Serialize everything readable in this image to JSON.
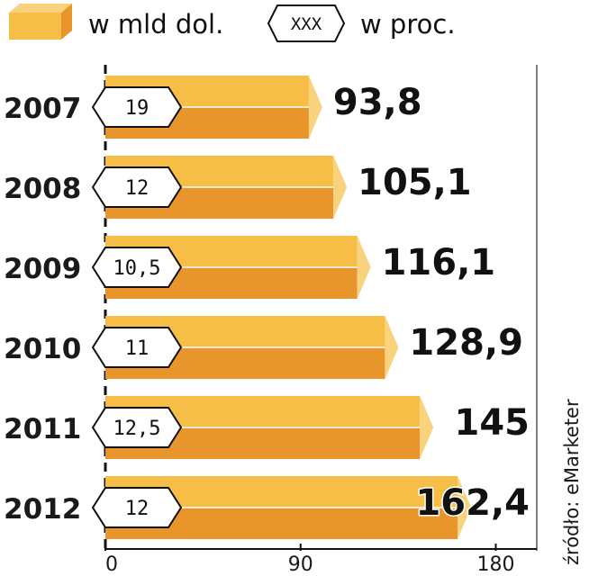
{
  "legend": {
    "bar_label": "w mld dol.",
    "pct_label": "w proc.",
    "pct_symbol": "XXX"
  },
  "source": "źródło: eMarketer",
  "chart_data": {
    "type": "bar",
    "orientation": "horizontal",
    "categories": [
      "2007",
      "2008",
      "2009",
      "2010",
      "2011",
      "2012"
    ],
    "series": [
      {
        "name": "w mld dol.",
        "values": [
          93.8,
          105.1,
          116.1,
          128.9,
          145,
          162.4
        ],
        "labels": [
          "93,8",
          "105,1",
          "116,1",
          "128,9",
          "145",
          "162,4"
        ]
      },
      {
        "name": "w proc.",
        "values": [
          19,
          12,
          10.5,
          11,
          12.5,
          12
        ],
        "labels": [
          "19",
          "12",
          "10,5",
          "11",
          "12,5",
          "12"
        ]
      }
    ],
    "xlim": [
      0,
      180
    ],
    "xticks": [
      "0",
      "90",
      "180"
    ],
    "grid": false,
    "colors": {
      "bar_top": "#f6bd47",
      "bar_bottom": "#e8962c",
      "bar_tip": "#f9d27d",
      "badge_fill": "#ffffff",
      "text": "#111111"
    }
  }
}
